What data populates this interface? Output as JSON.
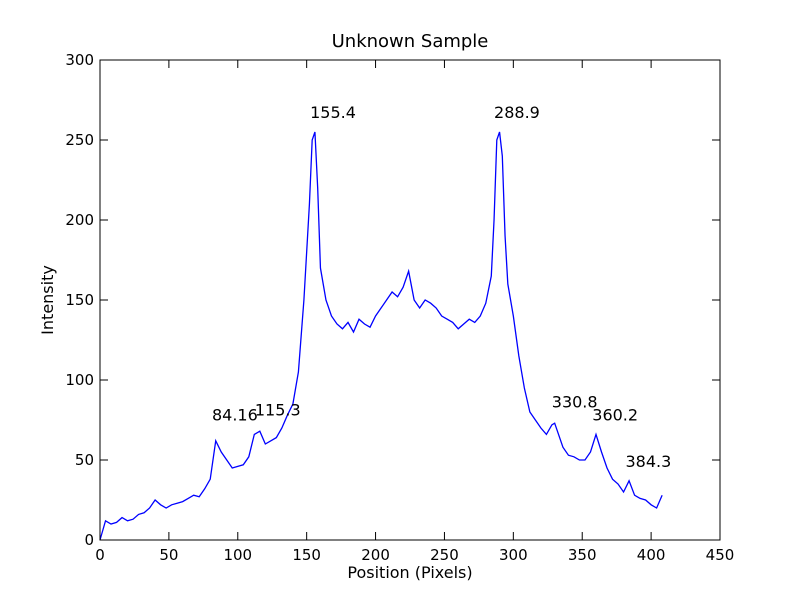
{
  "chart_data": {
    "type": "line",
    "title": "Unknown Sample",
    "x_label": "Position (Pixels)",
    "y_label": "Intensity",
    "x": [
      0,
      4,
      8,
      12,
      16,
      20,
      24,
      28,
      32,
      36,
      40,
      44,
      48,
      52,
      56,
      60,
      64,
      68,
      72,
      76,
      80,
      84,
      88,
      92,
      96,
      100,
      104,
      108,
      112,
      116,
      120,
      124,
      128,
      132,
      136,
      140,
      144,
      148,
      152,
      154,
      156,
      158,
      160,
      164,
      168,
      172,
      176,
      180,
      184,
      188,
      192,
      196,
      200,
      204,
      208,
      212,
      216,
      220,
      224,
      228,
      232,
      236,
      240,
      244,
      248,
      252,
      256,
      260,
      264,
      268,
      272,
      276,
      280,
      284,
      286,
      288,
      290,
      292,
      294,
      296,
      300,
      304,
      308,
      312,
      316,
      320,
      324,
      328,
      330,
      332,
      336,
      340,
      344,
      348,
      352,
      356,
      360,
      364,
      368,
      372,
      376,
      380,
      384,
      388,
      392,
      396,
      400,
      404,
      408
    ],
    "series": [
      {
        "name": "Unknown Sample",
        "color": "#0000ff",
        "values": [
          0,
          12,
          10,
          11,
          14,
          12,
          13,
          16,
          17,
          20,
          25,
          22,
          20,
          22,
          23,
          24,
          26,
          28,
          27,
          32,
          38,
          62,
          55,
          50,
          45,
          46,
          47,
          52,
          66,
          68,
          60,
          62,
          64,
          70,
          78,
          85,
          105,
          150,
          210,
          250,
          255,
          220,
          170,
          150,
          140,
          135,
          132,
          136,
          130,
          138,
          135,
          133,
          140,
          145,
          150,
          155,
          152,
          158,
          168,
          150,
          145,
          150,
          148,
          145,
          140,
          138,
          136,
          132,
          135,
          138,
          136,
          140,
          148,
          165,
          200,
          250,
          255,
          240,
          190,
          160,
          140,
          115,
          95,
          80,
          75,
          70,
          66,
          72,
          73,
          68,
          58,
          53,
          52,
          50,
          50,
          55,
          66,
          55,
          45,
          38,
          35,
          30,
          37,
          28,
          26,
          25,
          22,
          20,
          28
        ]
      }
    ],
    "annotations": [
      {
        "label": "84.16",
        "x": 84.16,
        "y": 66
      },
      {
        "label": "115.3",
        "x": 115.3,
        "y": 69
      },
      {
        "label": "155.4",
        "x": 155.4,
        "y": 255
      },
      {
        "label": "288.9",
        "x": 288.9,
        "y": 255
      },
      {
        "label": "330.8",
        "x": 330.8,
        "y": 74
      },
      {
        "label": "360.2",
        "x": 360.2,
        "y": 66
      },
      {
        "label": "384.3",
        "x": 384.3,
        "y": 37
      }
    ],
    "xlim": [
      0,
      450
    ],
    "ylim": [
      0,
      300
    ],
    "xticks": [
      0,
      50,
      100,
      150,
      200,
      250,
      300,
      350,
      400,
      450
    ],
    "yticks": [
      0,
      50,
      100,
      150,
      200,
      250,
      300
    ]
  }
}
